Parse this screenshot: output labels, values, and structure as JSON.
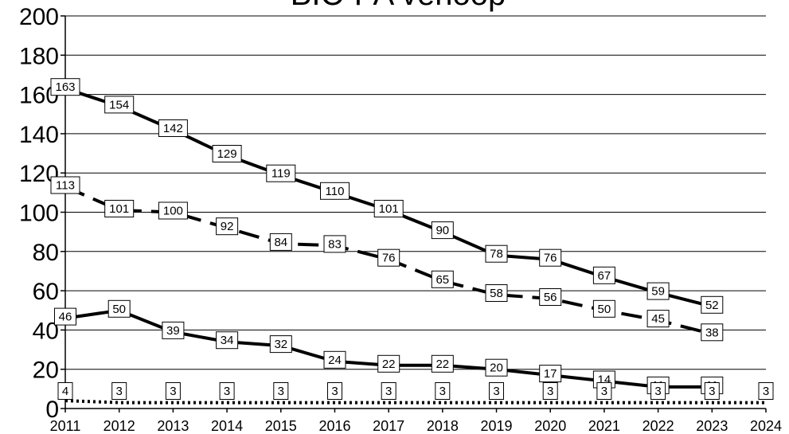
{
  "chart_data": {
    "type": "line",
    "title": "BIC-PA verloop",
    "x": [
      "2011",
      "2012",
      "2013",
      "2014",
      "2015",
      "2016",
      "2017",
      "2018",
      "2019",
      "2020",
      "2021",
      "2022",
      "2023",
      "2024"
    ],
    "ylim": [
      0,
      200
    ],
    "yticks": [
      0,
      20,
      40,
      60,
      80,
      100,
      120,
      140,
      160,
      180,
      200
    ],
    "grid": "horizontal",
    "series": [
      {
        "style": "solid",
        "values": [
          163,
          154,
          142,
          129,
          119,
          110,
          101,
          90,
          78,
          76,
          67,
          59,
          52,
          null
        ]
      },
      {
        "style": "dashed",
        "values": [
          113,
          101,
          100,
          92,
          84,
          83,
          76,
          65,
          58,
          56,
          50,
          45,
          38,
          null
        ]
      },
      {
        "style": "solid",
        "values": [
          46,
          50,
          39,
          34,
          32,
          24,
          22,
          22,
          20,
          17,
          14,
          11,
          11,
          null
        ]
      },
      {
        "style": "dotted",
        "values": [
          4,
          3,
          3,
          3,
          3,
          3,
          3,
          3,
          3,
          3,
          3,
          3,
          3,
          3
        ]
      }
    ]
  }
}
